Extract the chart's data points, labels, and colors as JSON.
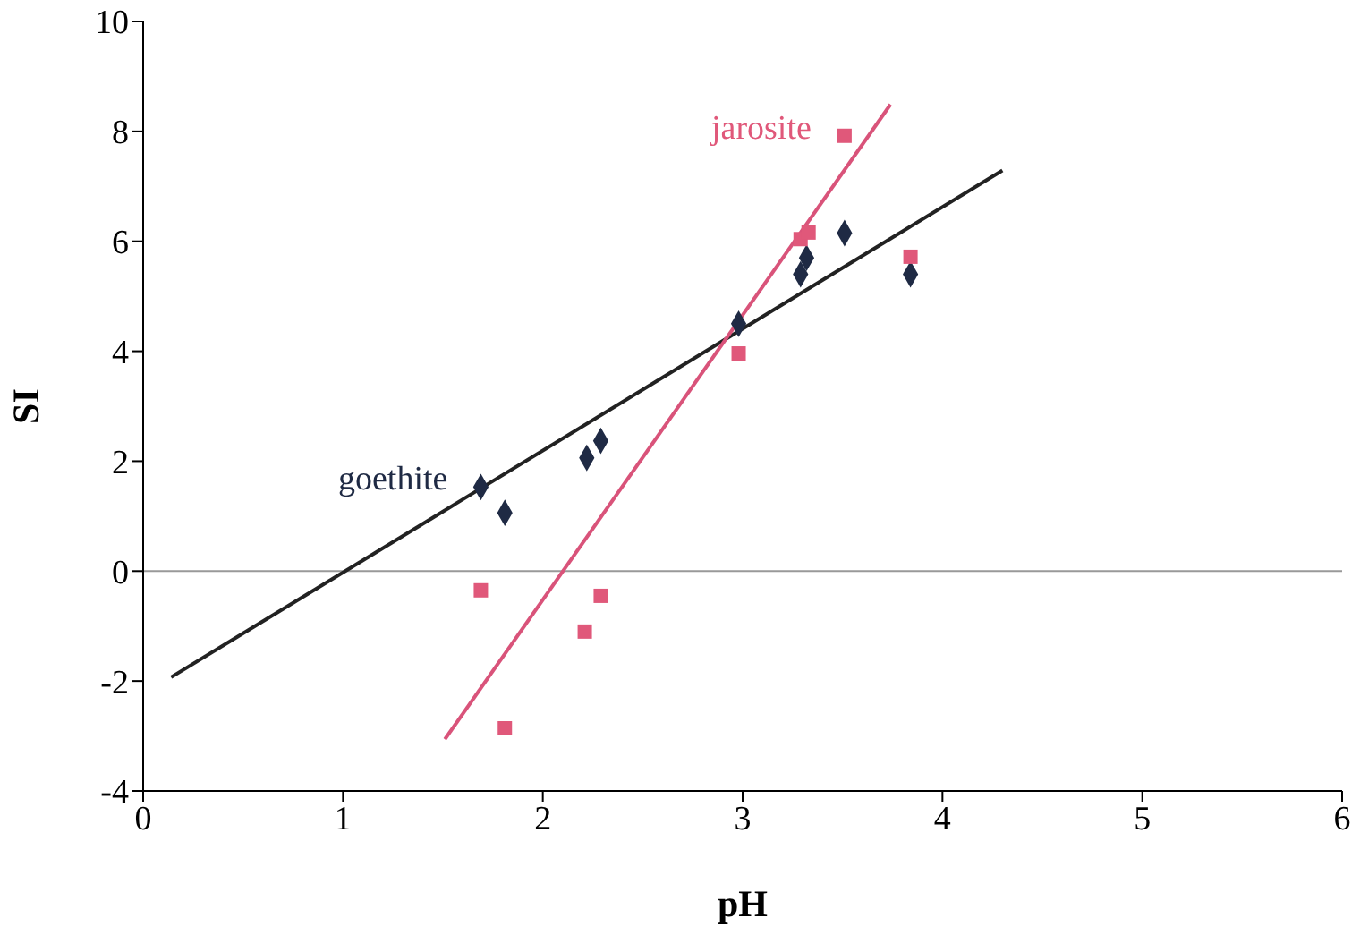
{
  "chart_data": {
    "type": "scatter",
    "xlabel": "pH",
    "ylabel": "SI",
    "xlim": [
      0,
      6
    ],
    "xticks": [
      0,
      1,
      2,
      3,
      4,
      5,
      6
    ],
    "ylim": [
      -4,
      10
    ],
    "yticks": [
      -4,
      -2,
      0,
      2,
      4,
      6,
      8,
      10
    ],
    "grid": false,
    "ref_lines": [
      {
        "axis": "y",
        "value": 0,
        "color": "#999999"
      }
    ],
    "series": [
      {
        "name": "goethite",
        "type": "scatter",
        "marker": "diamond",
        "color": "#1f2a44",
        "x": [
          1.69,
          1.81,
          2.22,
          2.29,
          2.98,
          3.29,
          3.32,
          3.51,
          3.84
        ],
        "values": [
          1.53,
          1.06,
          2.06,
          2.37,
          4.5,
          5.4,
          5.7,
          6.15,
          5.4
        ]
      },
      {
        "name": "jarosite",
        "type": "scatter",
        "marker": "square",
        "color": "#e0587a",
        "x": [
          1.69,
          1.81,
          2.21,
          2.29,
          2.98,
          3.29,
          3.33,
          3.51,
          3.84
        ],
        "values": [
          -0.35,
          -2.86,
          -1.1,
          -0.45,
          3.96,
          6.04,
          6.16,
          7.92,
          5.72
        ]
      },
      {
        "type": "line",
        "color": "#222222",
        "x": [
          0.14,
          4.3
        ],
        "values": [
          -1.93,
          7.29
        ]
      },
      {
        "type": "line",
        "color": "#d9537a",
        "x": [
          1.51,
          3.74
        ],
        "values": [
          -3.06,
          8.49
        ]
      }
    ]
  }
}
